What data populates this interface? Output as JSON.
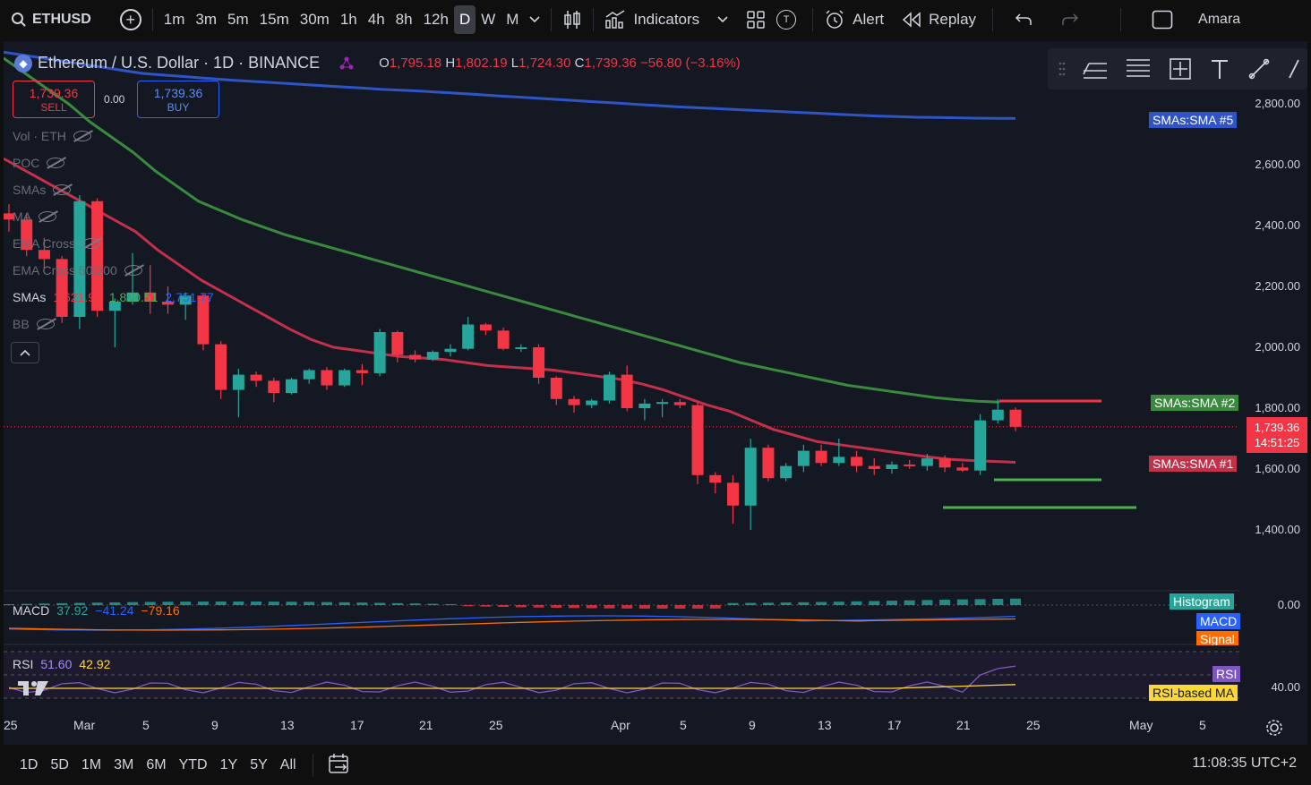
{
  "toolbar": {
    "symbol": "ETHUSD",
    "timeframes": [
      "1m",
      "3m",
      "5m",
      "15m",
      "30m",
      "1h",
      "4h",
      "8h",
      "12h",
      "D",
      "W",
      "M"
    ],
    "active_timeframe": "D",
    "indicators_label": "Indicators",
    "alert_label": "Alert",
    "replay_label": "Replay",
    "user": "Amara",
    "indicator_template_badge": "T"
  },
  "legend": {
    "title": "Ethereum / U.S. Dollar · 1D · BINANCE",
    "open_key": "O",
    "open": "1,795.18",
    "high_key": "H",
    "high": "1,802.19",
    "low_key": "L",
    "low": "1,724.30",
    "close_key": "C",
    "close": "1,739.36",
    "change": "−56.80 (−3.16%)"
  },
  "trade": {
    "sell_price": "1,739.36",
    "sell_label": "SELL",
    "buy_price": "1,739.36",
    "buy_label": "BUY",
    "spread": "0.00"
  },
  "indicators": [
    {
      "label": "Vol · ETH"
    },
    {
      "label": "POC"
    },
    {
      "label": "SMAs"
    },
    {
      "label": "MA"
    },
    {
      "label": "EMA Cross"
    },
    {
      "label": "EMA Cross 50/200"
    },
    {
      "label": "BB"
    }
  ],
  "smas_row": {
    "label": "SMAs",
    "v1": "1,621.95",
    "v2": "1,820.51",
    "v3": "2,751.77"
  },
  "price_axis": [
    "2,800.00",
    "2,600.00",
    "2,400.00",
    "2,200.00",
    "2,000.00",
    "1,800.00",
    "1,600.00",
    "1,400.00"
  ],
  "current_price": {
    "price": "1,739.36",
    "countdown": "14:51:25"
  },
  "sma_tags": {
    "sma5": "SMAs:SMA #5",
    "sma2": "SMAs:SMA #2",
    "sma1": "SMAs:SMA #1"
  },
  "macd": {
    "label": "MACD",
    "v1": "37.92",
    "v2": "−41.24",
    "v3": "−79.16",
    "axis": "0.00",
    "tags": {
      "histogram": "Histogram",
      "macd": "MACD",
      "signal": "Signal"
    }
  },
  "rsi": {
    "label": "RSI",
    "v1": "51.60",
    "v2": "42.92",
    "axis": "40.00",
    "tags": {
      "rsi": "RSI",
      "rsi_ma": "RSI-based MA"
    }
  },
  "time_axis": [
    "25",
    "Mar",
    "5",
    "9",
    "13",
    "17",
    "21",
    "25",
    "Apr",
    "5",
    "9",
    "13",
    "17",
    "21",
    "25",
    "May",
    "5"
  ],
  "ranges": [
    "1D",
    "5D",
    "1M",
    "3M",
    "6M",
    "YTD",
    "1Y",
    "5Y",
    "All"
  ],
  "clock": "11:08:35 UTC+2",
  "colors": {
    "up": "#26a69a",
    "down": "#f23645",
    "sma5": "#2f54c6",
    "sma2": "#3a8a3e",
    "sma1": "#c2304a",
    "bg": "#141823",
    "toolbar_bg": "#0f0f10"
  },
  "chart_data": {
    "type": "candlestick",
    "series": [
      {
        "name": "ETHUSD",
        "candles": [
          {
            "o": 2440,
            "h": 2470,
            "l": 2380,
            "c": 2420
          },
          {
            "o": 2420,
            "h": 2440,
            "l": 2300,
            "c": 2320
          },
          {
            "o": 2320,
            "h": 2360,
            "l": 2260,
            "c": 2290
          },
          {
            "o": 2290,
            "h": 2300,
            "l": 2080,
            "c": 2100
          },
          {
            "o": 2100,
            "h": 2500,
            "l": 2060,
            "c": 2480
          },
          {
            "o": 2480,
            "h": 2490,
            "l": 2100,
            "c": 2120
          },
          {
            "o": 2120,
            "h": 2160,
            "l": 2000,
            "c": 2150
          },
          {
            "o": 2150,
            "h": 2310,
            "l": 2140,
            "c": 2180
          },
          {
            "o": 2180,
            "h": 2270,
            "l": 2110,
            "c": 2150
          },
          {
            "o": 2150,
            "h": 2200,
            "l": 2110,
            "c": 2140
          },
          {
            "o": 2140,
            "h": 2180,
            "l": 2090,
            "c": 2170
          },
          {
            "o": 2170,
            "h": 2175,
            "l": 1990,
            "c": 2010
          },
          {
            "o": 2010,
            "h": 2020,
            "l": 1830,
            "c": 1860
          },
          {
            "o": 1860,
            "h": 1930,
            "l": 1770,
            "c": 1910
          },
          {
            "o": 1910,
            "h": 1920,
            "l": 1870,
            "c": 1890
          },
          {
            "o": 1890,
            "h": 1900,
            "l": 1820,
            "c": 1850
          },
          {
            "o": 1850,
            "h": 1900,
            "l": 1845,
            "c": 1895
          },
          {
            "o": 1895,
            "h": 1930,
            "l": 1880,
            "c": 1925
          },
          {
            "o": 1925,
            "h": 1935,
            "l": 1860,
            "c": 1875
          },
          {
            "o": 1875,
            "h": 1930,
            "l": 1870,
            "c": 1925
          },
          {
            "o": 1925,
            "h": 1945,
            "l": 1875,
            "c": 1915
          },
          {
            "o": 1915,
            "h": 2060,
            "l": 1905,
            "c": 2050
          },
          {
            "o": 2050,
            "h": 2055,
            "l": 1950,
            "c": 1975
          },
          {
            "o": 1975,
            "h": 1990,
            "l": 1950,
            "c": 1960
          },
          {
            "o": 1960,
            "h": 1990,
            "l": 1955,
            "c": 1985
          },
          {
            "o": 1985,
            "h": 2010,
            "l": 1970,
            "c": 1995
          },
          {
            "o": 1995,
            "h": 2100,
            "l": 1990,
            "c": 2075
          },
          {
            "o": 2075,
            "h": 2080,
            "l": 2040,
            "c": 2055
          },
          {
            "o": 2055,
            "h": 2065,
            "l": 1990,
            "c": 1995
          },
          {
            "o": 1995,
            "h": 2010,
            "l": 1985,
            "c": 2000
          },
          {
            "o": 2000,
            "h": 2010,
            "l": 1880,
            "c": 1900
          },
          {
            "o": 1900,
            "h": 1905,
            "l": 1810,
            "c": 1830
          },
          {
            "o": 1830,
            "h": 1840,
            "l": 1785,
            "c": 1810
          },
          {
            "o": 1810,
            "h": 1830,
            "l": 1800,
            "c": 1825
          },
          {
            "o": 1825,
            "h": 1920,
            "l": 1815,
            "c": 1910
          },
          {
            "o": 1910,
            "h": 1940,
            "l": 1790,
            "c": 1800
          },
          {
            "o": 1800,
            "h": 1830,
            "l": 1760,
            "c": 1815
          },
          {
            "o": 1815,
            "h": 1830,
            "l": 1770,
            "c": 1820
          },
          {
            "o": 1820,
            "h": 1830,
            "l": 1800,
            "c": 1810
          },
          {
            "o": 1810,
            "h": 1820,
            "l": 1550,
            "c": 1580
          },
          {
            "o": 1580,
            "h": 1590,
            "l": 1520,
            "c": 1555
          },
          {
            "o": 1555,
            "h": 1580,
            "l": 1420,
            "c": 1480
          },
          {
            "o": 1480,
            "h": 1700,
            "l": 1400,
            "c": 1670
          },
          {
            "o": 1670,
            "h": 1680,
            "l": 1560,
            "c": 1570
          },
          {
            "o": 1570,
            "h": 1620,
            "l": 1560,
            "c": 1610
          },
          {
            "o": 1610,
            "h": 1680,
            "l": 1590,
            "c": 1660
          },
          {
            "o": 1660,
            "h": 1680,
            "l": 1610,
            "c": 1620
          },
          {
            "o": 1620,
            "h": 1700,
            "l": 1610,
            "c": 1640
          },
          {
            "o": 1640,
            "h": 1660,
            "l": 1590,
            "c": 1610
          },
          {
            "o": 1610,
            "h": 1635,
            "l": 1580,
            "c": 1600
          },
          {
            "o": 1600,
            "h": 1625,
            "l": 1585,
            "c": 1615
          },
          {
            "o": 1615,
            "h": 1630,
            "l": 1600,
            "c": 1610
          },
          {
            "o": 1610,
            "h": 1650,
            "l": 1595,
            "c": 1635
          },
          {
            "o": 1635,
            "h": 1645,
            "l": 1590,
            "c": 1605
          },
          {
            "o": 1605,
            "h": 1620,
            "l": 1590,
            "c": 1595
          },
          {
            "o": 1595,
            "h": 1780,
            "l": 1580,
            "c": 1760
          },
          {
            "o": 1760,
            "h": 1830,
            "l": 1750,
            "c": 1795
          },
          {
            "o": 1795,
            "h": 1802,
            "l": 1724,
            "c": 1739
          }
        ]
      },
      {
        "name": "SMAs:SMA #5",
        "values": [
          2970,
          2960,
          2950,
          2940,
          2930,
          2920,
          2910,
          2900,
          2895,
          2890,
          2885,
          2880,
          2876,
          2872,
          2868,
          2864,
          2860,
          2856,
          2852,
          2848,
          2845,
          2842,
          2838,
          2834,
          2830,
          2826,
          2822,
          2818,
          2814,
          2810,
          2806,
          2802,
          2798,
          2794,
          2790,
          2787,
          2784,
          2781,
          2778,
          2775,
          2772,
          2769,
          2766,
          2763,
          2760,
          2758,
          2756,
          2755,
          2754,
          2753,
          2752,
          2752
        ]
      },
      {
        "name": "SMAs:SMA #2",
        "values": [
          2950,
          2900,
          2850,
          2800,
          2740,
          2690,
          2640,
          2580,
          2530,
          2480,
          2450,
          2420,
          2395,
          2370,
          2350,
          2330,
          2310,
          2290,
          2270,
          2250,
          2230,
          2210,
          2190,
          2170,
          2150,
          2130,
          2110,
          2090,
          2070,
          2050,
          2030,
          2010,
          1990,
          1970,
          1950,
          1935,
          1920,
          1905,
          1890,
          1875,
          1865,
          1855,
          1845,
          1835,
          1828,
          1823,
          1820
        ]
      },
      {
        "name": "SMAs:SMA #1",
        "values": [
          2620,
          2580,
          2540,
          2500,
          2460,
          2420,
          2380,
          2320,
          2270,
          2220,
          2180,
          2140,
          2100,
          2060,
          2025,
          2000,
          1990,
          1980,
          1970,
          1965,
          1960,
          1950,
          1940,
          1935,
          1930,
          1925,
          1915,
          1905,
          1895,
          1880,
          1860,
          1835,
          1810,
          1790,
          1760,
          1730,
          1710,
          1690,
          1680,
          1670,
          1660,
          1650,
          1640,
          1632,
          1628,
          1625,
          1622
        ]
      }
    ],
    "ylim": [
      1300,
      2950
    ],
    "y_ticks": [
      1400,
      1600,
      1800,
      2000,
      2200,
      2400,
      2600,
      2800
    ]
  }
}
